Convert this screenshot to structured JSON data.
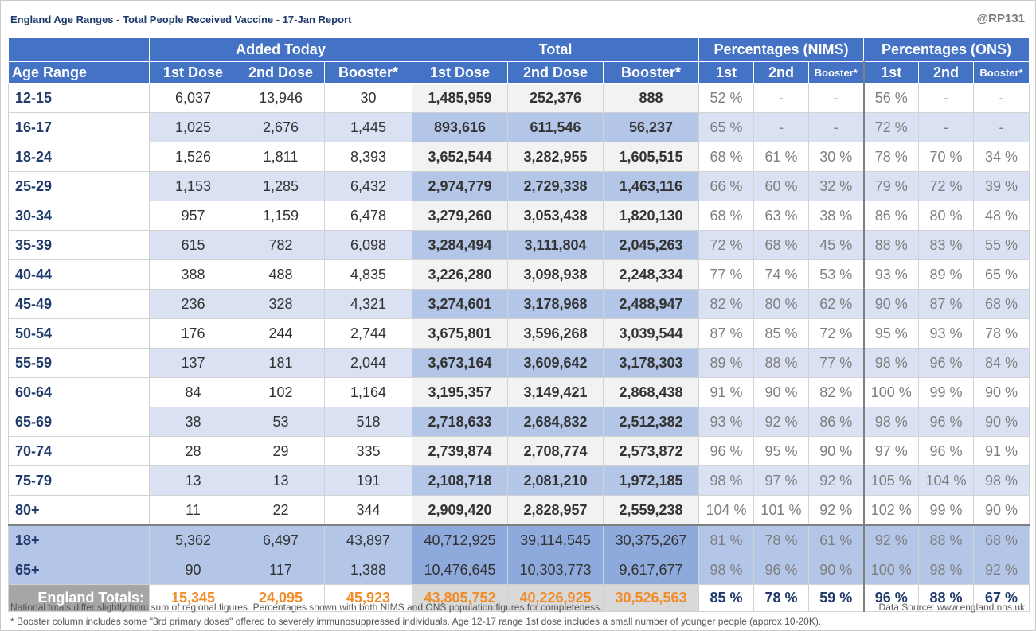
{
  "title": "England Age Ranges - Total People Received Vaccine - 17-Jan Report",
  "handle": "@RP131",
  "headers": {
    "age_range": "Age Range",
    "groups": [
      "Added Today",
      "Total",
      "Percentages (NIMS)",
      "Percentages (ONS)"
    ],
    "first_dose": "1st Dose",
    "second_dose": "2nd Dose",
    "booster": "Booster*",
    "p_first": "1st",
    "p_second": "2nd"
  },
  "rows": [
    [
      "12-15",
      "6,037",
      "13,946",
      "30",
      "1,485,959",
      "252,376",
      "888",
      "52 %",
      "-",
      "-",
      "56 %",
      "-",
      "-"
    ],
    [
      "16-17",
      "1,025",
      "2,676",
      "1,445",
      "893,616",
      "611,546",
      "56,237",
      "65 %",
      "-",
      "-",
      "72 %",
      "-",
      "-"
    ],
    [
      "18-24",
      "1,526",
      "1,811",
      "8,393",
      "3,652,544",
      "3,282,955",
      "1,605,515",
      "68 %",
      "61 %",
      "30 %",
      "78 %",
      "70 %",
      "34 %"
    ],
    [
      "25-29",
      "1,153",
      "1,285",
      "6,432",
      "2,974,779",
      "2,729,338",
      "1,463,116",
      "66 %",
      "60 %",
      "32 %",
      "79 %",
      "72 %",
      "39 %"
    ],
    [
      "30-34",
      "957",
      "1,159",
      "6,478",
      "3,279,260",
      "3,053,438",
      "1,820,130",
      "68 %",
      "63 %",
      "38 %",
      "86 %",
      "80 %",
      "48 %"
    ],
    [
      "35-39",
      "615",
      "782",
      "6,098",
      "3,284,494",
      "3,111,804",
      "2,045,263",
      "72 %",
      "68 %",
      "45 %",
      "88 %",
      "83 %",
      "55 %"
    ],
    [
      "40-44",
      "388",
      "488",
      "4,835",
      "3,226,280",
      "3,098,938",
      "2,248,334",
      "77 %",
      "74 %",
      "53 %",
      "93 %",
      "89 %",
      "65 %"
    ],
    [
      "45-49",
      "236",
      "328",
      "4,321",
      "3,274,601",
      "3,178,968",
      "2,488,947",
      "82 %",
      "80 %",
      "62 %",
      "90 %",
      "87 %",
      "68 %"
    ],
    [
      "50-54",
      "176",
      "244",
      "2,744",
      "3,675,801",
      "3,596,268",
      "3,039,544",
      "87 %",
      "85 %",
      "72 %",
      "95 %",
      "93 %",
      "78 %"
    ],
    [
      "55-59",
      "137",
      "181",
      "2,044",
      "3,673,164",
      "3,609,642",
      "3,178,303",
      "89 %",
      "88 %",
      "77 %",
      "98 %",
      "96 %",
      "84 %"
    ],
    [
      "60-64",
      "84",
      "102",
      "1,164",
      "3,195,357",
      "3,149,421",
      "2,868,438",
      "91 %",
      "90 %",
      "82 %",
      "100 %",
      "99 %",
      "90 %"
    ],
    [
      "65-69",
      "38",
      "53",
      "518",
      "2,718,633",
      "2,684,832",
      "2,512,382",
      "93 %",
      "92 %",
      "86 %",
      "98 %",
      "96 %",
      "90 %"
    ],
    [
      "70-74",
      "28",
      "29",
      "335",
      "2,739,874",
      "2,708,774",
      "2,573,872",
      "96 %",
      "95 %",
      "90 %",
      "97 %",
      "96 %",
      "91 %"
    ],
    [
      "75-79",
      "13",
      "13",
      "191",
      "2,108,718",
      "2,081,210",
      "1,972,185",
      "98 %",
      "97 %",
      "92 %",
      "105 %",
      "104 %",
      "98 %"
    ],
    [
      "80+",
      "11",
      "22",
      "344",
      "2,909,420",
      "2,828,957",
      "2,559,238",
      "104 %",
      "101 %",
      "92 %",
      "102 %",
      "99 %",
      "90 %"
    ]
  ],
  "summary_rows": [
    [
      "18+",
      "5,362",
      "6,497",
      "43,897",
      "40,712,925",
      "39,114,545",
      "30,375,267",
      "81 %",
      "78 %",
      "61 %",
      "92 %",
      "88 %",
      "68 %"
    ],
    [
      "65+",
      "90",
      "117",
      "1,388",
      "10,476,645",
      "10,303,773",
      "9,617,677",
      "98 %",
      "96 %",
      "90 %",
      "100 %",
      "98 %",
      "92 %"
    ]
  ],
  "totals": [
    "England Totals:",
    "15,345",
    "24,095",
    "45,923",
    "43,805,752",
    "40,226,925",
    "30,526,563",
    "85 %",
    "78 %",
    "59 %",
    "96 %",
    "88 %",
    "67 %"
  ],
  "footnotes": {
    "line1": "National totals differ slightly from sum of regional figures. Percentages shown with both NIMS and ONS population figures for completeness.",
    "line2": "* Booster column includes some \"3rd primary doses\" offered to severely immunosuppressed individuals. Age 12-17 range 1st dose includes a small number of younger people (approx 10-20K).",
    "source": "Data Source: www.england.nhs.uk"
  },
  "colors": {
    "header_blue": "#4472c4",
    "band_light": "#d9e1f2",
    "band_mid": "#b4c6e7",
    "total_orange": "#f28c28",
    "age_text": "#1f3a6b"
  }
}
